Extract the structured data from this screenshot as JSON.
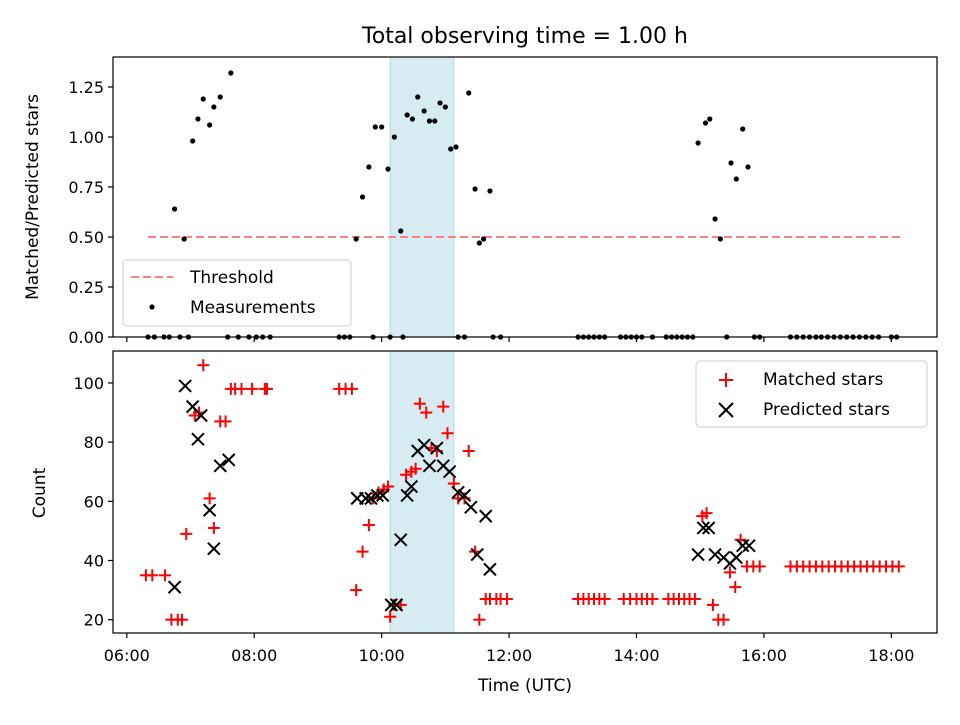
{
  "figure": {
    "title": "Total observing time = 1.00 h",
    "xlabel": "Time (UTC)",
    "x_ticks": [
      "06:00",
      "08:00",
      "10:00",
      "12:00",
      "14:00",
      "16:00",
      "18:00"
    ],
    "highlight_band": {
      "start": "10:08",
      "end": "11:08",
      "color": "#add8e6"
    }
  },
  "chart_data": [
    {
      "type": "scatter",
      "title": "Total observing time = 1.00 h",
      "xlabel": "",
      "ylabel": "Matched/Predicted stars",
      "xlim": [
        "05:47",
        "18:43"
      ],
      "ylim": [
        0,
        1.4
      ],
      "y_ticks": [
        "0.00",
        "0.25",
        "0.50",
        "0.75",
        "1.00",
        "1.25"
      ],
      "grid": false,
      "legend_position": "lower-left",
      "threshold": {
        "name": "Threshold",
        "value": 0.5,
        "x_start": "06:20",
        "x_end": "18:10",
        "color": "#ff7f7f",
        "style": "dashed"
      },
      "series": [
        {
          "name": "Measurements",
          "color": "#000000",
          "marker": "dot",
          "points": [
            [
              "06:20",
              0
            ],
            [
              "06:26",
              0
            ],
            [
              "06:35",
              0
            ],
            [
              "06:40",
              0
            ],
            [
              "06:45",
              0.64
            ],
            [
              "06:50",
              0
            ],
            [
              "06:54",
              0.49
            ],
            [
              "06:58",
              0
            ],
            [
              "07:02",
              0.98
            ],
            [
              "07:07",
              1.09
            ],
            [
              "07:12",
              1.19
            ],
            [
              "07:18",
              1.06
            ],
            [
              "07:22",
              1.15
            ],
            [
              "07:28",
              1.2
            ],
            [
              "07:35",
              0
            ],
            [
              "07:38",
              1.32
            ],
            [
              "07:45",
              0
            ],
            [
              "07:55",
              0
            ],
            [
              "08:02",
              0
            ],
            [
              "08:08",
              0
            ],
            [
              "08:15",
              0
            ],
            [
              "09:20",
              0
            ],
            [
              "09:25",
              0
            ],
            [
              "09:30",
              0
            ],
            [
              "09:36",
              0.49
            ],
            [
              "09:42",
              0.7
            ],
            [
              "09:48",
              0.85
            ],
            [
              "09:52",
              0
            ],
            [
              "09:54",
              1.05
            ],
            [
              "10:00",
              1.05
            ],
            [
              "10:06",
              0.84
            ],
            [
              "10:08",
              0
            ],
            [
              "10:12",
              1.0
            ],
            [
              "10:18",
              0.53
            ],
            [
              "10:20",
              0
            ],
            [
              "10:24",
              1.11
            ],
            [
              "10:29",
              1.09
            ],
            [
              "10:34",
              1.2
            ],
            [
              "10:40",
              1.13
            ],
            [
              "10:45",
              1.08
            ],
            [
              "10:50",
              1.08
            ],
            [
              "10:55",
              1.17
            ],
            [
              "11:00",
              1.15
            ],
            [
              "11:05",
              0.94
            ],
            [
              "11:10",
              0.95
            ],
            [
              "11:12",
              0
            ],
            [
              "11:18",
              0
            ],
            [
              "11:22",
              1.22
            ],
            [
              "11:28",
              0.74
            ],
            [
              "11:32",
              0.47
            ],
            [
              "11:36",
              0.49
            ],
            [
              "11:42",
              0.73
            ],
            [
              "11:45",
              0
            ],
            [
              "11:52",
              0
            ],
            [
              "13:05",
              0
            ],
            [
              "13:10",
              0
            ],
            [
              "13:15",
              0
            ],
            [
              "13:20",
              0
            ],
            [
              "13:25",
              0
            ],
            [
              "13:30",
              0
            ],
            [
              "13:45",
              0
            ],
            [
              "13:50",
              0
            ],
            [
              "13:55",
              0
            ],
            [
              "14:00",
              0
            ],
            [
              "14:05",
              0
            ],
            [
              "14:15",
              0
            ],
            [
              "14:28",
              0
            ],
            [
              "14:33",
              0
            ],
            [
              "14:38",
              0
            ],
            [
              "14:43",
              0
            ],
            [
              "14:48",
              0
            ],
            [
              "14:53",
              0
            ],
            [
              "14:58",
              0.97
            ],
            [
              "15:05",
              1.07
            ],
            [
              "15:09",
              1.09
            ],
            [
              "15:14",
              0.59
            ],
            [
              "15:19",
              0.49
            ],
            [
              "15:25",
              0
            ],
            [
              "15:29",
              0.87
            ],
            [
              "15:34",
              0.79
            ],
            [
              "15:40",
              1.04
            ],
            [
              "15:45",
              0.85
            ],
            [
              "15:51",
              0
            ],
            [
              "15:56",
              0
            ],
            [
              "16:25",
              0
            ],
            [
              "16:31",
              0
            ],
            [
              "16:37",
              0
            ],
            [
              "16:43",
              0
            ],
            [
              "16:49",
              0
            ],
            [
              "16:54",
              0
            ],
            [
              "17:00",
              0
            ],
            [
              "17:06",
              0
            ],
            [
              "17:12",
              0
            ],
            [
              "17:18",
              0
            ],
            [
              "17:24",
              0
            ],
            [
              "17:30",
              0
            ],
            [
              "17:36",
              0
            ],
            [
              "17:42",
              0
            ],
            [
              "17:48",
              0
            ],
            [
              "18:00",
              0
            ],
            [
              "18:05",
              0
            ]
          ]
        }
      ]
    },
    {
      "type": "scatter",
      "title": "",
      "xlabel": "Time (UTC)",
      "ylabel": "Count",
      "xlim": [
        "05:47",
        "18:43"
      ],
      "ylim": [
        15.5,
        110.8
      ],
      "y_ticks": [
        "20",
        "40",
        "60",
        "80",
        "100"
      ],
      "grid": false,
      "legend_position": "top-right",
      "series": [
        {
          "name": "Matched stars",
          "color": "#ff0000",
          "marker": "plus",
          "points": [
            [
              "06:18",
              35
            ],
            [
              "06:24",
              35
            ],
            [
              "06:36",
              35
            ],
            [
              "06:42",
              20
            ],
            [
              "06:48",
              20
            ],
            [
              "06:52",
              20
            ],
            [
              "06:56",
              49
            ],
            [
              "07:04",
              89
            ],
            [
              "07:08",
              90
            ],
            [
              "07:12",
              106
            ],
            [
              "07:18",
              61
            ],
            [
              "07:22",
              51
            ],
            [
              "07:28",
              87
            ],
            [
              "07:33",
              87
            ],
            [
              "07:38",
              98
            ],
            [
              "07:42",
              98
            ],
            [
              "07:48",
              98
            ],
            [
              "07:58",
              98
            ],
            [
              "08:10",
              98
            ],
            [
              "08:12",
              98
            ],
            [
              "09:20",
              98
            ],
            [
              "09:26",
              98
            ],
            [
              "09:32",
              98
            ],
            [
              "09:36",
              30
            ],
            [
              "09:42",
              43
            ],
            [
              "09:48",
              52
            ],
            [
              "09:52",
              61
            ],
            [
              "09:57",
              63
            ],
            [
              "10:02",
              64
            ],
            [
              "10:06",
              65
            ],
            [
              "10:08",
              21
            ],
            [
              "10:12",
              25
            ],
            [
              "10:18",
              25
            ],
            [
              "10:23",
              69
            ],
            [
              "10:28",
              70
            ],
            [
              "10:32",
              71
            ],
            [
              "10:36",
              93
            ],
            [
              "10:42",
              90
            ],
            [
              "10:47",
              78
            ],
            [
              "10:52",
              77
            ],
            [
              "10:58",
              92
            ],
            [
              "11:02",
              83
            ],
            [
              "11:08",
              66
            ],
            [
              "11:12",
              61
            ],
            [
              "11:18",
              61
            ],
            [
              "11:22",
              77
            ],
            [
              "11:28",
              43
            ],
            [
              "11:32",
              20
            ],
            [
              "11:38",
              27
            ],
            [
              "11:42",
              27
            ],
            [
              "11:48",
              27
            ],
            [
              "11:52",
              27
            ],
            [
              "11:58",
              27
            ],
            [
              "13:05",
              27
            ],
            [
              "13:10",
              27
            ],
            [
              "13:15",
              27
            ],
            [
              "13:20",
              27
            ],
            [
              "13:25",
              27
            ],
            [
              "13:30",
              27
            ],
            [
              "13:48",
              27
            ],
            [
              "13:54",
              27
            ],
            [
              "14:00",
              27
            ],
            [
              "14:05",
              27
            ],
            [
              "14:10",
              27
            ],
            [
              "14:15",
              27
            ],
            [
              "14:30",
              27
            ],
            [
              "14:35",
              27
            ],
            [
              "14:40",
              27
            ],
            [
              "14:45",
              27
            ],
            [
              "14:50",
              27
            ],
            [
              "14:55",
              27
            ],
            [
              "15:02",
              55
            ],
            [
              "15:06",
              56
            ],
            [
              "15:12",
              25
            ],
            [
              "15:17",
              20
            ],
            [
              "15:22",
              20
            ],
            [
              "15:28",
              36
            ],
            [
              "15:33",
              31
            ],
            [
              "15:38",
              47
            ],
            [
              "15:44",
              38
            ],
            [
              "15:50",
              38
            ],
            [
              "15:56",
              38
            ],
            [
              "16:25",
              38
            ],
            [
              "16:31",
              38
            ],
            [
              "16:37",
              38
            ],
            [
              "16:43",
              38
            ],
            [
              "16:49",
              38
            ],
            [
              "16:55",
              38
            ],
            [
              "17:01",
              38
            ],
            [
              "17:07",
              38
            ],
            [
              "17:13",
              38
            ],
            [
              "17:19",
              38
            ],
            [
              "17:25",
              38
            ],
            [
              "17:31",
              38
            ],
            [
              "17:37",
              38
            ],
            [
              "17:43",
              38
            ],
            [
              "17:49",
              38
            ],
            [
              "17:55",
              38
            ],
            [
              "18:01",
              38
            ],
            [
              "18:07",
              38
            ]
          ]
        },
        {
          "name": "Predicted stars",
          "color": "#000000",
          "marker": "x",
          "points": [
            [
              "06:45",
              31
            ],
            [
              "06:55",
              99
            ],
            [
              "07:02",
              92
            ],
            [
              "07:07",
              81
            ],
            [
              "07:10",
              89
            ],
            [
              "07:18",
              57
            ],
            [
              "07:22",
              44
            ],
            [
              "07:28",
              72
            ],
            [
              "07:36",
              74
            ],
            [
              "09:37",
              61
            ],
            [
              "09:45",
              61
            ],
            [
              "09:50",
              61
            ],
            [
              "09:56",
              62
            ],
            [
              "10:01",
              62
            ],
            [
              "10:09",
              25
            ],
            [
              "10:14",
              25
            ],
            [
              "10:18",
              47
            ],
            [
              "10:24",
              62
            ],
            [
              "10:28",
              65
            ],
            [
              "10:34",
              77
            ],
            [
              "10:40",
              79
            ],
            [
              "10:45",
              72
            ],
            [
              "10:52",
              78
            ],
            [
              "10:58",
              72
            ],
            [
              "11:04",
              70
            ],
            [
              "11:12",
              63
            ],
            [
              "11:18",
              62
            ],
            [
              "11:24",
              58
            ],
            [
              "11:30",
              42
            ],
            [
              "11:38",
              55
            ],
            [
              "11:42",
              37
            ],
            [
              "14:58",
              42
            ],
            [
              "15:03",
              51
            ],
            [
              "15:08",
              51
            ],
            [
              "15:14",
              42
            ],
            [
              "15:22",
              41
            ],
            [
              "15:28",
              39
            ],
            [
              "15:34",
              41
            ],
            [
              "15:40",
              45
            ],
            [
              "15:46",
              45
            ]
          ]
        }
      ]
    }
  ]
}
